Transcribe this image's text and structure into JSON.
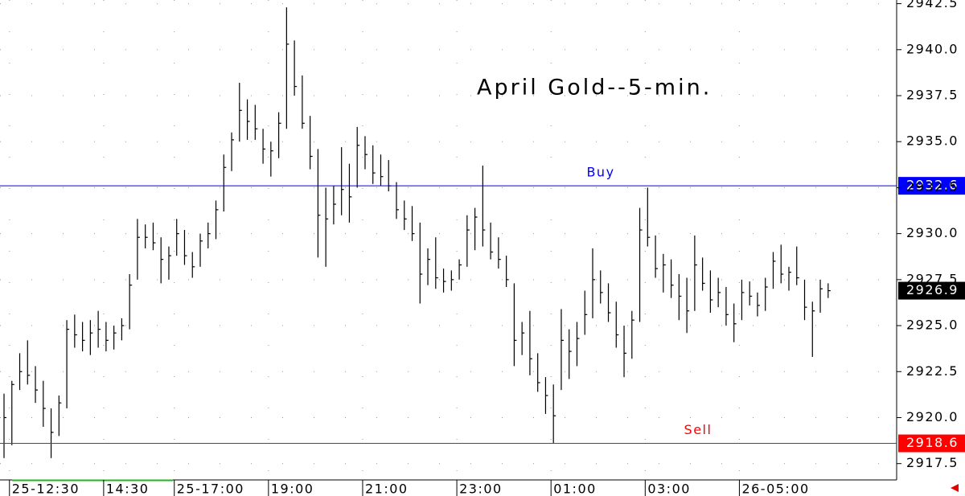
{
  "chart_data": {
    "type": "hlc",
    "title": "April Gold--5-min.",
    "categories": [
      null,
      "25-12:30",
      null,
      null,
      null,
      null,
      null,
      null,
      null,
      null,
      null,
      null,
      null,
      "14:30",
      null,
      null,
      null,
      null,
      null,
      null,
      null,
      null,
      "25-17:00",
      null,
      null,
      null,
      null,
      null,
      null,
      null,
      null,
      null,
      null,
      null,
      "19:00",
      null,
      null,
      null,
      null,
      null,
      null,
      null,
      null,
      null,
      null,
      null,
      "21:00",
      null,
      null,
      null,
      null,
      null,
      null,
      null,
      null,
      null,
      null,
      null,
      "23:00",
      null,
      null,
      null,
      null,
      null,
      null,
      null,
      null,
      null,
      null,
      null,
      "01:00",
      null,
      null,
      null,
      null,
      null,
      null,
      null,
      null,
      null,
      null,
      null,
      "03:00",
      null,
      null,
      null,
      null,
      null,
      null,
      null,
      null,
      null,
      null,
      null,
      "26-05:00",
      null,
      null,
      null,
      null,
      null,
      null,
      null,
      null,
      null,
      null,
      null
    ],
    "high": [
      2921.3,
      2922,
      2923.5,
      2924.2,
      2922.8,
      2922,
      2920.5,
      2921.2,
      2925.3,
      2925.6,
      2925.2,
      2925.3,
      2925.8,
      2925.2,
      2925,
      2925.4,
      2927.8,
      2930.8,
      2930.5,
      2930.6,
      2929.8,
      2929.3,
      2930.8,
      2930.2,
      2929,
      2930,
      2930.6,
      2931.8,
      2934.3,
      2935.5,
      2938.2,
      2937.3,
      2937,
      2935.7,
      2935,
      2936.6,
      2942.3,
      2940.5,
      2938.6,
      2936.4,
      2934.6,
      2932.5,
      2932.6,
      2934.7,
      2933.8,
      2935.8,
      2935.3,
      2934.8,
      2934.3,
      2934,
      2932.8,
      2931.8,
      2931.5,
      2930.6,
      2929.2,
      2929.8,
      2928.1,
      2928,
      2928.6,
      2931,
      2931.4,
      2933.7,
      2930.6,
      2929.8,
      2928.8,
      2927.3,
      2925.2,
      2925.8,
      2923.5,
      2922.2,
      2921.8,
      2925.9,
      2924.8,
      2925.2,
      2926.9,
      2929.2,
      2928,
      2927.3,
      2926.3,
      2925,
      2925.8,
      2931.4,
      2932.5,
      2929.9,
      2928.9,
      2928.6,
      2927.8,
      2927.6,
      2929.9,
      2928.7,
      2928,
      2927.6,
      2927.1,
      2926.2,
      2927.5,
      2927.4,
      2926.8,
      2927.6,
      2929,
      2929.4,
      2928.2,
      2929.3,
      2927.5,
      2926.3,
      2927.5,
      2927.3
    ],
    "low": [
      2917.8,
      2918.5,
      2921.5,
      2921.8,
      2920.8,
      2919.5,
      2917.8,
      2919,
      2920.5,
      2923.8,
      2923.6,
      2923.4,
      2923.8,
      2923.6,
      2923.7,
      2924.2,
      2924.8,
      2927.5,
      2929.2,
      2929.1,
      2927.3,
      2927.5,
      2928.8,
      2928.3,
      2927.6,
      2928.2,
      2929.2,
      2929.7,
      2931.2,
      2933.4,
      2935,
      2935.1,
      2935.1,
      2933.8,
      2933.1,
      2934.1,
      2935.7,
      2937.5,
      2935.7,
      2933.5,
      2928.7,
      2928.2,
      2930.5,
      2931,
      2930.6,
      2932.5,
      2933.5,
      2932.7,
      2932.6,
      2932.3,
      2930.8,
      2930.2,
      2929.6,
      2926.2,
      2927.2,
      2927,
      2926.8,
      2926.9,
      2927.5,
      2928.2,
      2929.1,
      2929.3,
      2928.6,
      2928.1,
      2927.1,
      2922.8,
      2923.4,
      2922.3,
      2921.4,
      2920.2,
      2918.6,
      2921.5,
      2922.1,
      2922.8,
      2924.5,
      2925.4,
      2926.2,
      2925.2,
      2923.8,
      2922.2,
      2923.2,
      2925.2,
      2929.3,
      2927.6,
      2926.8,
      2926.5,
      2925.3,
      2924.6,
      2925.8,
      2926.9,
      2925.7,
      2926,
      2925,
      2924.1,
      2925.3,
      2926.1,
      2925.5,
      2925.8,
      2927,
      2927.3,
      2926.9,
      2927.2,
      2925.3,
      2923.3,
      2925.7,
      2926.5
    ],
    "close": [
      2920,
      2921.8,
      2922.5,
      2922.3,
      2921.5,
      2920.5,
      2919.2,
      2920.8,
      2924.8,
      2924.5,
      2924.2,
      2924.6,
      2924.8,
      2924.2,
      2924.6,
      2925,
      2927.2,
      2929.8,
      2929.8,
      2929.5,
      2928.6,
      2928.8,
      2930,
      2928.8,
      2928.2,
      2929.6,
      2930,
      2931.3,
      2933.6,
      2935.1,
      2936.7,
      2936.1,
      2935.7,
      2934.6,
      2934.5,
      2936,
      2940.3,
      2938,
      2936,
      2934.2,
      2931,
      2930.8,
      2931.6,
      2932.4,
      2932,
      2934.8,
      2934.3,
      2933.3,
      2933.1,
      2932.6,
      2931.3,
      2930.8,
      2930,
      2927.8,
      2928.6,
      2927.6,
      2927.4,
      2927.5,
      2928.3,
      2930.2,
      2930.9,
      2930.2,
      2929,
      2928.6,
      2927.5,
      2924.2,
      2924.6,
      2923.2,
      2921.9,
      2921.2,
      2920.1,
      2924.2,
      2923.6,
      2924.3,
      2925.6,
      2927.5,
      2926.8,
      2925.7,
      2924.5,
      2923.5,
      2925.3,
      2930.2,
      2929.8,
      2928.1,
      2928.3,
      2927.2,
      2926.6,
      2925.8,
      2928.3,
      2927.3,
      2926.4,
      2926.8,
      2925.6,
      2925.1,
      2926.8,
      2926.6,
      2926.1,
      2927.1,
      2928.5,
      2927.8,
      2927.9,
      2927.6,
      2926,
      2925.8,
      2927,
      2926.9
    ],
    "color": "#000000",
    "ylim": [
      2916.7,
      2942.7
    ],
    "yticks": [
      2917.5,
      {
        "value": 2920,
        "label": "2920.0"
      },
      2922.5,
      {
        "value": 2925,
        "label": "2925.0"
      },
      2927.5,
      {
        "value": 2930,
        "label": "2930.0"
      },
      2932.5,
      {
        "value": 2935,
        "label": "2935.0"
      },
      2937.5,
      {
        "value": 2940,
        "label": "2940.0"
      },
      2942.5
    ],
    "grid": true,
    "lines": [
      {
        "name": "Buy",
        "value": 2932.6,
        "color": "#0000ff"
      },
      {
        "name": "Sell",
        "value": 2918.6,
        "color": "#ff0000"
      }
    ],
    "last": 2926.9
  }
}
